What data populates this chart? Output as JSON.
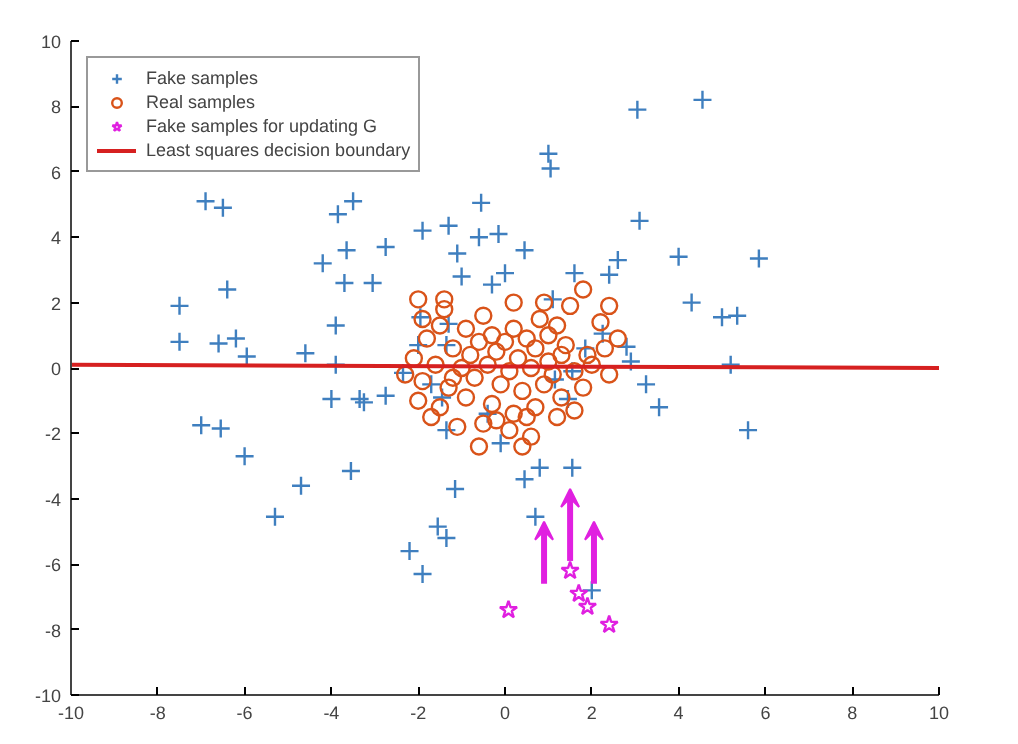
{
  "chart_data": {
    "type": "scatter",
    "xlim": [
      -10,
      10
    ],
    "ylim": [
      -10,
      10
    ],
    "xticks": [
      -10,
      -8,
      -6,
      -4,
      -2,
      0,
      2,
      4,
      6,
      8,
      10
    ],
    "yticks": [
      -10,
      -8,
      -6,
      -4,
      -2,
      0,
      2,
      4,
      6,
      8,
      10
    ],
    "grid": false,
    "legend": "top left",
    "series": [
      {
        "name": "Fake samples",
        "color": "#3f7fbf",
        "marker": "cross",
        "x": [
          -6.9,
          -6.5,
          -6.4,
          -7.5,
          -7.5,
          -6.6,
          -6.2,
          -5.95,
          -4.6,
          -3.9,
          -3.9,
          -4.2,
          -3.65,
          -3.7,
          -3.05,
          -2.75,
          -3.85,
          -3.5,
          -1.9,
          -1.3,
          -0.55,
          -0.6,
          -0.15,
          0.45,
          -1.1,
          -1.0,
          -0.3,
          0.0,
          -1.3,
          -1.95,
          -1.35,
          1.0,
          1.05,
          3.05,
          4.55,
          3.1,
          1.6,
          2.6,
          2.4,
          4.0,
          5.85,
          1.1,
          4.3,
          5.0,
          5.35,
          2.25,
          2.8,
          2.9,
          5.2,
          -2.35,
          -4.0,
          -3.35,
          -3.25,
          -2.75,
          -7.0,
          -6.55,
          -6.0,
          -3.55,
          -4.7,
          -5.3,
          -1.15,
          -1.55,
          -1.35,
          -2.2,
          -1.9,
          -1.45,
          -1.35,
          -1.7,
          -0.4,
          -0.1,
          0.45,
          0.8,
          0.7,
          -2.0,
          3.25,
          3.55,
          5.6,
          1.45,
          1.15,
          1.55,
          1.55,
          2.0,
          1.85
        ],
        "values": [
          5.1,
          4.9,
          2.4,
          1.9,
          0.8,
          0.75,
          0.9,
          0.35,
          0.45,
          0.1,
          1.3,
          3.2,
          3.6,
          2.6,
          2.6,
          3.7,
          4.7,
          5.1,
          4.2,
          4.35,
          5.05,
          4.0,
          4.1,
          3.6,
          3.5,
          2.8,
          2.55,
          2.9,
          1.35,
          1.55,
          0.7,
          6.55,
          6.1,
          7.9,
          8.2,
          4.5,
          2.9,
          3.3,
          2.85,
          3.4,
          3.35,
          2.1,
          2.0,
          1.55,
          1.6,
          1.05,
          0.65,
          0.2,
          0.1,
          -0.15,
          -0.95,
          -0.95,
          -1.05,
          -0.85,
          -1.75,
          -1.85,
          -2.7,
          -3.15,
          -3.6,
          -4.55,
          -3.7,
          -4.85,
          -5.2,
          -5.6,
          -6.3,
          -0.9,
          -1.9,
          -0.5,
          -1.4,
          -2.3,
          -3.4,
          -3.05,
          -4.55,
          0.7,
          -0.5,
          -1.2,
          -1.9,
          -0.95,
          -0.35,
          -0.1,
          -3.05,
          -6.8,
          0.6
        ]
      },
      {
        "name": "Real samples",
        "color": "#d95319",
        "marker": "circle",
        "x": [
          -2,
          -1.4,
          -1.5,
          -0.5,
          -0.3,
          0.2,
          0.5,
          0.8,
          1.2,
          1.5,
          1.8,
          2.2,
          -1.8,
          -1.2,
          -0.8,
          -0.2,
          0.3,
          0.7,
          1.0,
          1.4,
          1.9,
          2.3,
          -2.1,
          -1.6,
          -1.0,
          -0.4,
          0.1,
          0.6,
          1.1,
          1.6,
          2.0,
          2.4,
          -1.9,
          -1.3,
          -0.7,
          -0.1,
          0.4,
          0.9,
          1.3,
          1.8,
          -2.0,
          -1.5,
          -0.9,
          -0.3,
          0.2,
          0.7,
          1.2,
          -1.7,
          -1.1,
          -0.5,
          0.1,
          0.6,
          -0.6,
          -0.2,
          1.6,
          0.9,
          -0.9,
          -2.3,
          0.0,
          -1.4,
          0.4,
          1.3,
          -0.6,
          2.6,
          2.4,
          0.2,
          -1.2,
          0.5,
          1.0,
          -1.9
        ],
        "values": [
          2.1,
          1.8,
          1.3,
          1.6,
          1.0,
          1.2,
          0.9,
          1.5,
          1.3,
          1.9,
          2.4,
          1.4,
          0.9,
          0.6,
          0.4,
          0.5,
          0.3,
          0.6,
          0.2,
          0.7,
          0.4,
          0.6,
          0.3,
          0.1,
          0.0,
          0.1,
          -0.1,
          0.0,
          -0.2,
          -0.1,
          0.1,
          -0.2,
          -0.4,
          -0.6,
          -0.3,
          -0.5,
          -0.7,
          -0.5,
          -0.9,
          -0.6,
          -1.0,
          -1.2,
          -0.9,
          -1.1,
          -1.4,
          -1.2,
          -1.5,
          -1.5,
          -1.8,
          -1.7,
          -1.9,
          -2.1,
          -2.4,
          -1.6,
          -1.3,
          2.0,
          1.2,
          -0.2,
          0.8,
          2.1,
          -2.4,
          0.4,
          0.8,
          0.9,
          1.9,
          2.0,
          -0.3,
          -1.5,
          1.0,
          1.5
        ]
      },
      {
        "name": "Fake samples for updating G",
        "color": "#e020e0",
        "marker": "star",
        "x": [
          0.08,
          1.5,
          1.7,
          1.9,
          2.4
        ],
        "values": [
          -7.4,
          -6.2,
          -6.9,
          -7.3,
          -7.85
        ]
      },
      {
        "name": "Least squares decision boundary",
        "type": "line",
        "color": "#d62020",
        "x": [
          -10,
          10
        ],
        "values": [
          0.1,
          0.0
        ]
      }
    ]
  }
}
